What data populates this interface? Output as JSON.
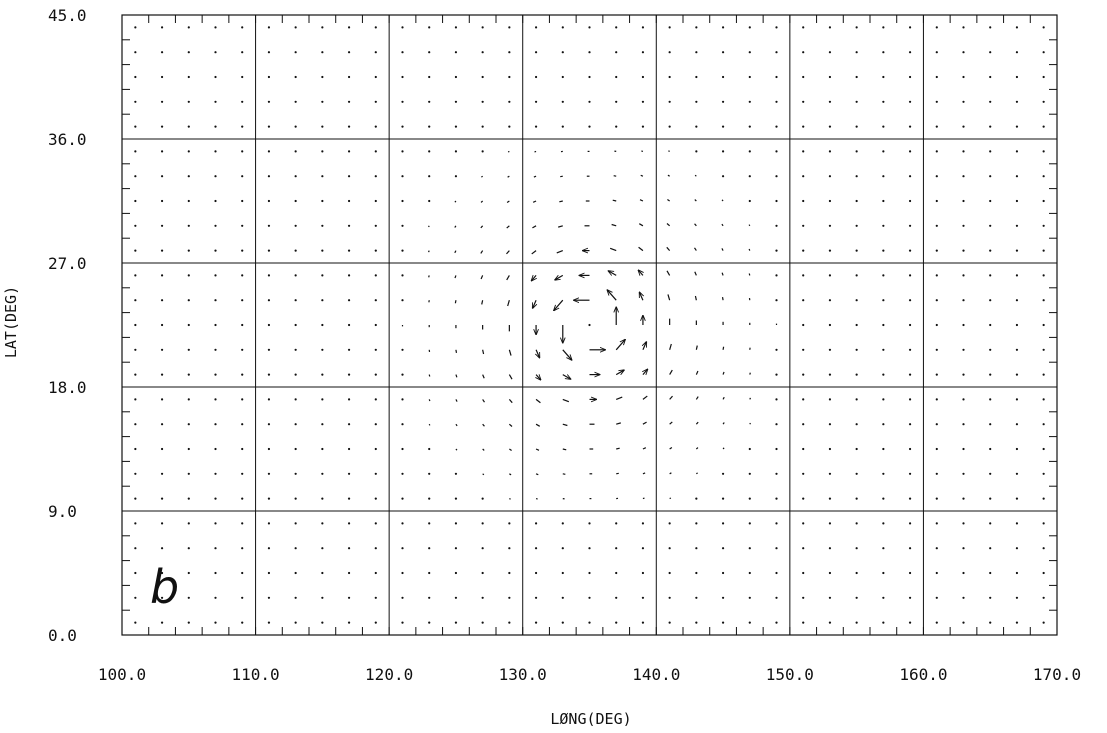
{
  "chart_data": {
    "type": "vector-field",
    "panel_label": "b",
    "xlabel": "LØNG(DEG)",
    "ylabel": "LAT(DEG)",
    "xlim": [
      100,
      170
    ],
    "ylim": [
      0,
      45
    ],
    "x_ticks": [
      100,
      110,
      120,
      130,
      140,
      150,
      160,
      170
    ],
    "y_ticks": [
      0,
      9,
      18,
      27,
      36,
      45
    ],
    "x_tick_labels": [
      "100.0",
      "110.0",
      "120.0",
      "130.0",
      "140.0",
      "150.0",
      "160.0",
      "170.0"
    ],
    "y_tick_labels": [
      "0.0",
      "9.0",
      "18.0",
      "27.0",
      "36.0",
      "45.0"
    ],
    "grid": true,
    "grid_spacing": {
      "x": 2,
      "y": 1.8
    },
    "vortex": {
      "center_lon": 135,
      "center_lat": 22.5,
      "rotation": "counterclockwise",
      "core_radius_deg": 2,
      "max_arrow_deg": 2.4,
      "influence_radius_deg": 18
    },
    "color": "#111111"
  }
}
